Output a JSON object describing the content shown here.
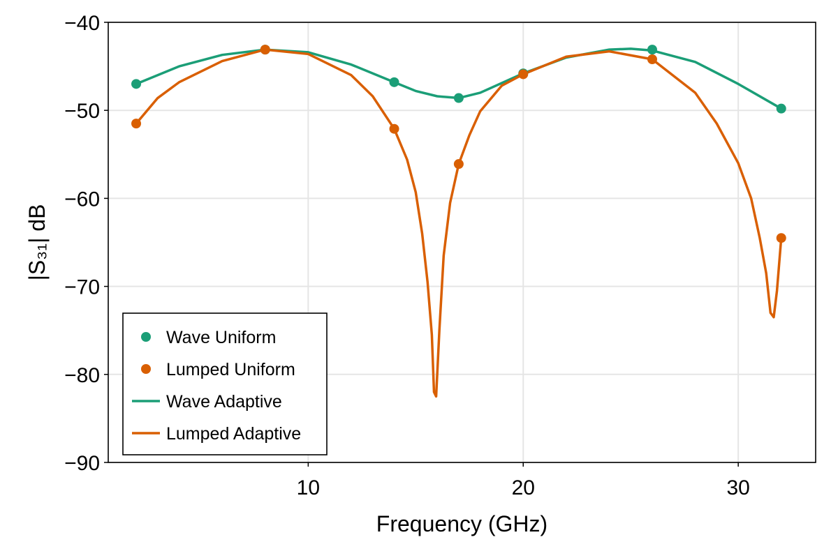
{
  "chart_data": {
    "type": "line",
    "xlabel": "Frequency (GHz)",
    "ylabel": "|S₃₁| dB",
    "xlim": [
      0.7,
      33.6
    ],
    "ylim": [
      -90,
      -40
    ],
    "xticks": [
      10,
      20,
      30
    ],
    "yticks": [
      -90,
      -80,
      -70,
      -60,
      -50,
      -40
    ],
    "xtick_labels": [
      "10",
      "20",
      "30"
    ],
    "ytick_labels": [
      "−90",
      "−80",
      "−70",
      "−60",
      "−50",
      "−40"
    ],
    "grid": true,
    "legend_position": "bottom-left",
    "scatter_series": [
      {
        "name": "Wave Uniform",
        "color": "#1b9e77",
        "x": [
          2,
          8,
          14,
          17,
          20,
          26,
          32
        ],
        "y": [
          -47.0,
          -43.1,
          -46.8,
          -48.6,
          -45.8,
          -43.1,
          -49.8
        ]
      },
      {
        "name": "Lumped Uniform",
        "color": "#d95f02",
        "x": [
          2,
          8,
          14,
          17,
          20,
          26,
          32
        ],
        "y": [
          -51.5,
          -43.1,
          -52.1,
          -56.1,
          -45.9,
          -44.2,
          -64.5
        ]
      }
    ],
    "line_series": [
      {
        "name": "Wave Adaptive",
        "color": "#1b9e77",
        "x": [
          2,
          4,
          6,
          8,
          10,
          12,
          14,
          15,
          16,
          17,
          18,
          20,
          22,
          24,
          25,
          26,
          28,
          30,
          32
        ],
        "y": [
          -47.0,
          -45.0,
          -43.7,
          -43.1,
          -43.4,
          -44.8,
          -46.8,
          -47.8,
          -48.4,
          -48.6,
          -48.0,
          -45.8,
          -44.0,
          -43.1,
          -43.0,
          -43.2,
          -44.5,
          -47.0,
          -49.8
        ]
      },
      {
        "name": "Lumped Adaptive",
        "color": "#d95f02",
        "x": [
          2,
          3,
          4,
          6,
          8,
          10,
          12,
          13,
          14,
          14.6,
          15.0,
          15.3,
          15.55,
          15.75,
          15.85,
          15.95,
          16.1,
          16.3,
          16.6,
          17,
          17.5,
          18,
          19,
          20,
          22,
          24,
          26,
          28,
          29,
          30,
          30.6,
          31.0,
          31.3,
          31.5,
          31.65,
          31.8,
          32
        ],
        "y": [
          -51.5,
          -48.6,
          -46.8,
          -44.4,
          -43.1,
          -43.6,
          -46.0,
          -48.4,
          -52.1,
          -55.6,
          -59.3,
          -64.0,
          -69.5,
          -75.5,
          -82.0,
          -82.5,
          -75.0,
          -66.5,
          -60.5,
          -56.1,
          -52.8,
          -50.1,
          -47.2,
          -45.9,
          -43.9,
          -43.3,
          -44.2,
          -48.0,
          -51.5,
          -56.0,
          -60.0,
          -64.5,
          -68.5,
          -73.0,
          -73.5,
          -70.5,
          -64.5
        ]
      }
    ]
  }
}
